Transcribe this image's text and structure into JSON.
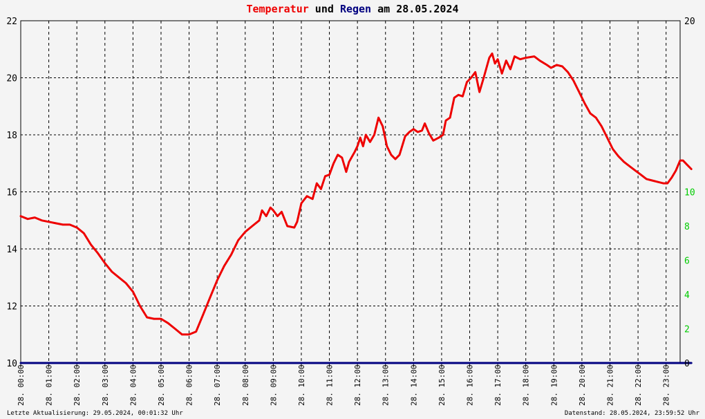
{
  "title": {
    "part1": "Temperatur",
    "part2": " und ",
    "part3": "Regen",
    "part4": " am 28.05.2024"
  },
  "colors": {
    "temperature": "#ee0000",
    "rain": "#000080",
    "right_axis_ticks": "#00cc00",
    "grid": "#000000",
    "background": "#f4f4f4"
  },
  "footer": {
    "left": "Letzte Aktualisierung: 29.05.2024, 00:01:32 Uhr",
    "right": "Datenstand: 28.05.2024, 23:59:52 Uhr"
  },
  "chart_data": {
    "type": "line",
    "title": "Temperatur und Regen am 28.05.2024",
    "xlabel": "",
    "ylabel": "",
    "x_ticks": [
      "28. 00:00",
      "28. 01:00",
      "28. 02:00",
      "28. 03:00",
      "28. 04:00",
      "28. 05:00",
      "28. 06:00",
      "28. 07:00",
      "28. 08:00",
      "28. 09:00",
      "28. 10:00",
      "28. 11:00",
      "28. 12:00",
      "28. 13:00",
      "28. 14:00",
      "28. 15:00",
      "28. 16:00",
      "28. 17:00",
      "28. 18:00",
      "28. 19:00",
      "28. 20:00",
      "28. 21:00",
      "28. 22:00",
      "28. 23:00"
    ],
    "y_left": {
      "lim": [
        10,
        22
      ],
      "ticks": [
        10,
        12,
        14,
        16,
        18,
        20,
        22
      ]
    },
    "y_right": {
      "lim": [
        0,
        20
      ],
      "ticks": [
        0,
        2,
        4,
        6,
        8,
        10,
        20
      ]
    },
    "grid": true,
    "xlim_hours": [
      0,
      23.5
    ],
    "series": [
      {
        "name": "Temperatur",
        "axis": "left",
        "points": [
          [
            0.0,
            15.15
          ],
          [
            0.25,
            15.05
          ],
          [
            0.5,
            15.1
          ],
          [
            0.75,
            15.0
          ],
          [
            1.0,
            14.95
          ],
          [
            1.25,
            14.9
          ],
          [
            1.5,
            14.85
          ],
          [
            1.75,
            14.85
          ],
          [
            2.0,
            14.75
          ],
          [
            2.25,
            14.55
          ],
          [
            2.5,
            14.15
          ],
          [
            2.75,
            13.85
          ],
          [
            3.0,
            13.5
          ],
          [
            3.25,
            13.2
          ],
          [
            3.5,
            13.0
          ],
          [
            3.75,
            12.8
          ],
          [
            4.0,
            12.5
          ],
          [
            4.25,
            12.0
          ],
          [
            4.5,
            11.6
          ],
          [
            4.75,
            11.55
          ],
          [
            5.0,
            11.55
          ],
          [
            5.25,
            11.4
          ],
          [
            5.5,
            11.2
          ],
          [
            5.75,
            11.0
          ],
          [
            6.0,
            11.0
          ],
          [
            6.25,
            11.1
          ],
          [
            6.5,
            11.7
          ],
          [
            6.75,
            12.3
          ],
          [
            7.0,
            12.9
          ],
          [
            7.25,
            13.4
          ],
          [
            7.5,
            13.8
          ],
          [
            7.75,
            14.3
          ],
          [
            8.0,
            14.6
          ],
          [
            8.25,
            14.8
          ],
          [
            8.5,
            15.0
          ],
          [
            8.6,
            15.35
          ],
          [
            8.75,
            15.15
          ],
          [
            8.9,
            15.45
          ],
          [
            9.0,
            15.35
          ],
          [
            9.15,
            15.15
          ],
          [
            9.3,
            15.3
          ],
          [
            9.5,
            14.8
          ],
          [
            9.75,
            14.75
          ],
          [
            9.85,
            14.95
          ],
          [
            10.0,
            15.6
          ],
          [
            10.2,
            15.85
          ],
          [
            10.4,
            15.75
          ],
          [
            10.55,
            16.3
          ],
          [
            10.7,
            16.1
          ],
          [
            10.85,
            16.55
          ],
          [
            11.0,
            16.6
          ],
          [
            11.15,
            17.0
          ],
          [
            11.3,
            17.3
          ],
          [
            11.45,
            17.2
          ],
          [
            11.6,
            16.7
          ],
          [
            11.7,
            17.05
          ],
          [
            11.9,
            17.4
          ],
          [
            12.0,
            17.6
          ],
          [
            12.1,
            17.9
          ],
          [
            12.2,
            17.6
          ],
          [
            12.3,
            18.0
          ],
          [
            12.45,
            17.75
          ],
          [
            12.6,
            18.0
          ],
          [
            12.75,
            18.6
          ],
          [
            12.9,
            18.3
          ],
          [
            13.05,
            17.6
          ],
          [
            13.2,
            17.3
          ],
          [
            13.35,
            17.15
          ],
          [
            13.5,
            17.3
          ],
          [
            13.7,
            17.95
          ],
          [
            13.85,
            18.1
          ],
          [
            14.0,
            18.2
          ],
          [
            14.15,
            18.1
          ],
          [
            14.3,
            18.15
          ],
          [
            14.4,
            18.4
          ],
          [
            14.55,
            18.05
          ],
          [
            14.7,
            17.8
          ],
          [
            14.9,
            17.9
          ],
          [
            15.05,
            18.0
          ],
          [
            15.15,
            18.5
          ],
          [
            15.3,
            18.6
          ],
          [
            15.45,
            19.3
          ],
          [
            15.6,
            19.4
          ],
          [
            15.75,
            19.35
          ],
          [
            15.9,
            19.85
          ],
          [
            16.05,
            20.0
          ],
          [
            16.2,
            20.2
          ],
          [
            16.35,
            19.5
          ],
          [
            16.5,
            20.0
          ],
          [
            16.7,
            20.7
          ],
          [
            16.8,
            20.85
          ],
          [
            16.9,
            20.5
          ],
          [
            17.0,
            20.65
          ],
          [
            17.15,
            20.15
          ],
          [
            17.3,
            20.6
          ],
          [
            17.45,
            20.3
          ],
          [
            17.6,
            20.75
          ],
          [
            17.8,
            20.65
          ],
          [
            18.0,
            20.7
          ],
          [
            18.3,
            20.75
          ],
          [
            18.5,
            20.6
          ],
          [
            18.75,
            20.45
          ],
          [
            18.9,
            20.35
          ],
          [
            19.1,
            20.45
          ],
          [
            19.3,
            20.4
          ],
          [
            19.5,
            20.2
          ],
          [
            19.7,
            19.9
          ],
          [
            19.9,
            19.5
          ],
          [
            20.1,
            19.1
          ],
          [
            20.3,
            18.75
          ],
          [
            20.5,
            18.6
          ],
          [
            20.7,
            18.3
          ],
          [
            20.9,
            17.9
          ],
          [
            21.1,
            17.5
          ],
          [
            21.3,
            17.25
          ],
          [
            21.5,
            17.05
          ],
          [
            21.7,
            16.9
          ],
          [
            21.9,
            16.75
          ],
          [
            22.1,
            16.6
          ],
          [
            22.3,
            16.45
          ],
          [
            22.5,
            16.4
          ],
          [
            22.7,
            16.35
          ],
          [
            22.9,
            16.3
          ],
          [
            23.05,
            16.3
          ],
          [
            23.2,
            16.5
          ],
          [
            23.35,
            16.75
          ],
          [
            23.5,
            17.1
          ],
          [
            23.6,
            17.1
          ],
          [
            23.75,
            16.95
          ],
          [
            23.9,
            16.8
          ]
        ]
      },
      {
        "name": "Regen",
        "axis": "right",
        "points": [
          [
            0.0,
            0.0
          ],
          [
            23.9,
            0.0
          ]
        ]
      }
    ]
  }
}
